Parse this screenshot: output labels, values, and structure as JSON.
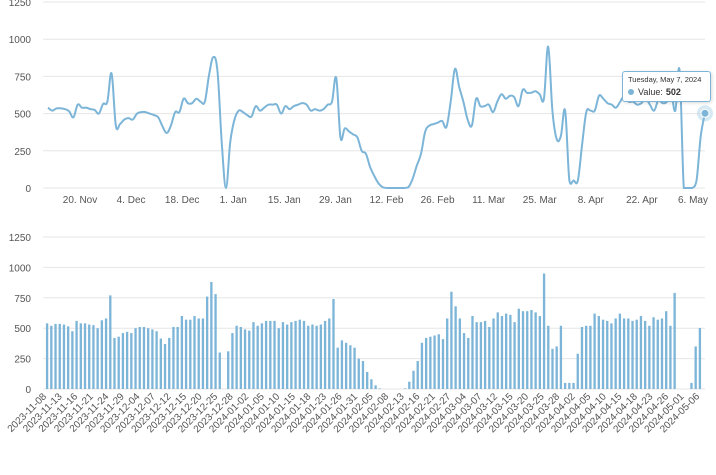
{
  "colors": {
    "series": "#7cb5d8",
    "grid": "#e6e6e6",
    "tick_text": "#555555"
  },
  "tooltip": {
    "date": "Tuesday, May 7, 2024",
    "label": "Value:",
    "value": "502"
  },
  "chart_data": [
    {
      "type": "line",
      "x_start": "2023-11-08",
      "x_end": "2024-05-07",
      "ylim": [
        0,
        1250
      ],
      "yticks": [
        0,
        250,
        500,
        750,
        1000,
        1250
      ],
      "xtick_labels": [
        "20. Nov",
        "4. Dec",
        "18. Dec",
        "1. Jan",
        "15. Jan",
        "29. Jan",
        "12. Feb",
        "26. Feb",
        "11. Mar",
        "25. Mar",
        "8. Apr",
        "22. Apr",
        "6. May"
      ],
      "grid": true,
      "values": [
        540,
        520,
        535,
        535,
        530,
        515,
        475,
        560,
        540,
        540,
        530,
        525,
        500,
        565,
        580,
        770,
        420,
        430,
        460,
        470,
        460,
        500,
        510,
        510,
        500,
        490,
        475,
        415,
        370,
        420,
        510,
        510,
        600,
        570,
        570,
        600,
        580,
        580,
        760,
        880,
        780,
        300,
        0,
        310,
        460,
        520,
        510,
        490,
        480,
        550,
        520,
        540,
        560,
        560,
        560,
        500,
        550,
        530,
        550,
        560,
        570,
        560,
        520,
        530,
        520,
        530,
        560,
        580,
        740,
        340,
        400,
        380,
        360,
        340,
        250,
        230,
        140,
        80,
        30,
        5,
        0,
        0,
        0,
        0,
        0,
        5,
        60,
        150,
        230,
        380,
        420,
        430,
        440,
        450,
        410,
        580,
        800,
        680,
        580,
        460,
        420,
        600,
        550,
        550,
        560,
        510,
        580,
        630,
        600,
        620,
        610,
        550,
        660,
        640,
        640,
        650,
        630,
        600,
        950,
        520,
        330,
        350,
        520,
        50,
        50,
        50,
        290,
        510,
        520,
        520,
        620,
        600,
        570,
        560,
        540,
        580,
        620,
        580,
        580,
        560,
        570,
        600,
        560,
        520,
        590,
        570,
        580,
        640,
        520,
        790,
        0,
        0,
        0,
        50,
        350,
        502
      ]
    },
    {
      "type": "bar",
      "ylim": [
        0,
        1250
      ],
      "yticks": [
        0,
        250,
        500,
        750,
        1000,
        1250
      ],
      "grid": true,
      "x_start": "2023-11-08",
      "x_end": "2024-05-07",
      "xtick_labels": [
        "2023-11-08",
        "2023-11-13",
        "2023-11-16",
        "2023-11-21",
        "2023-11-24",
        "2023-11-29",
        "2023-12-04",
        "2023-12-07",
        "2023-12-12",
        "2023-12-15",
        "2023-12-20",
        "2023-12-25",
        "2023-12-28",
        "2024-01-02",
        "2024-01-05",
        "2024-01-10",
        "2024-01-15",
        "2024-01-18",
        "2024-01-23",
        "2024-01-26",
        "2024-01-31",
        "2024-02-05",
        "2024-02-08",
        "2024-02-13",
        "2024-02-16",
        "2024-02-21",
        "2024-02-27",
        "2024-03-04",
        "2024-03-07",
        "2024-03-12",
        "2024-03-15",
        "2024-03-20",
        "2024-03-25",
        "2024-03-28",
        "2024-04-02",
        "2024-04-05",
        "2024-04-10",
        "2024-04-15",
        "2024-04-18",
        "2024-04-23",
        "2024-04-26",
        "2024-05-01",
        "2024-05-06"
      ],
      "values": [
        540,
        520,
        535,
        535,
        530,
        515,
        475,
        560,
        540,
        540,
        530,
        525,
        500,
        565,
        580,
        770,
        420,
        430,
        460,
        470,
        460,
        500,
        510,
        510,
        500,
        490,
        475,
        415,
        370,
        420,
        510,
        510,
        600,
        570,
        570,
        600,
        580,
        580,
        760,
        880,
        780,
        300,
        0,
        310,
        460,
        520,
        510,
        490,
        480,
        550,
        520,
        540,
        560,
        560,
        560,
        500,
        550,
        530,
        550,
        560,
        570,
        560,
        520,
        530,
        520,
        530,
        560,
        580,
        740,
        340,
        400,
        380,
        360,
        340,
        250,
        230,
        140,
        80,
        30,
        5,
        0,
        0,
        0,
        0,
        0,
        5,
        60,
        150,
        230,
        380,
        420,
        430,
        440,
        450,
        410,
        580,
        800,
        680,
        580,
        460,
        420,
        600,
        550,
        550,
        560,
        510,
        580,
        630,
        600,
        620,
        610,
        550,
        660,
        640,
        640,
        650,
        630,
        600,
        950,
        520,
        330,
        350,
        520,
        50,
        50,
        50,
        290,
        510,
        520,
        520,
        620,
        600,
        570,
        560,
        540,
        580,
        620,
        580,
        580,
        560,
        570,
        600,
        560,
        520,
        590,
        570,
        580,
        640,
        520,
        790,
        0,
        0,
        0,
        50,
        350,
        502
      ]
    }
  ]
}
